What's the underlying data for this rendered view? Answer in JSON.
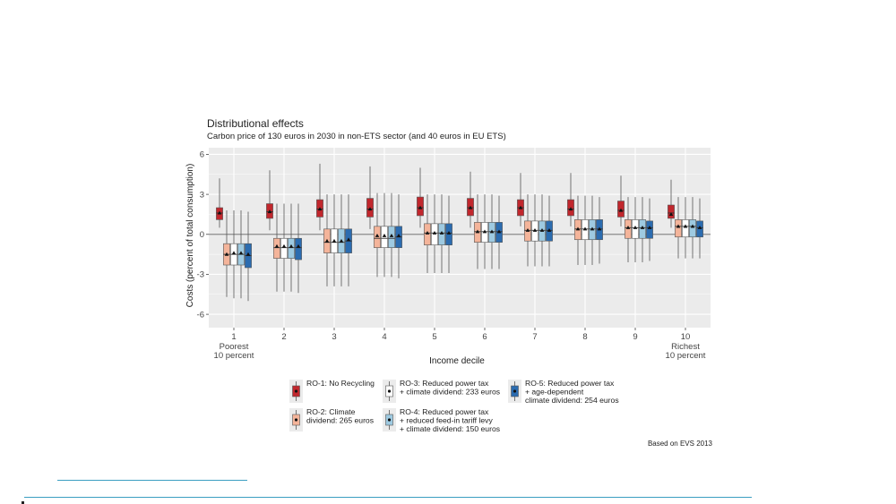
{
  "chart_data": {
    "type": "boxplot",
    "title": "Distributional effects",
    "subtitle": "Carbon price of 130 euros in 2030 in non-ETS sector (and 40 euros in EU ETS)",
    "xlabel": "Income decile",
    "ylabel": "Costs (percent of total consumption)",
    "ylim": [
      -7,
      6.5
    ],
    "yticks": [
      "6",
      "3",
      "0",
      "-3",
      "-6"
    ],
    "ytick_values": [
      6,
      3,
      0,
      -3,
      -6
    ],
    "categories": [
      "1",
      "2",
      "3",
      "4",
      "5",
      "6",
      "7",
      "8",
      "9",
      "10"
    ],
    "category_sublabels": {
      "first": [
        "Poorest",
        "10 percent"
      ],
      "last": [
        "Richest",
        "10 percent"
      ]
    },
    "note": "Based on EVS 2013",
    "series": [
      {
        "id": "RO-1",
        "color": "#c1272d",
        "legend": [
          "RO-1: No Recycling"
        ],
        "q1": [
          1.1,
          1.2,
          1.3,
          1.3,
          1.4,
          1.4,
          1.4,
          1.4,
          1.3,
          1.2
        ],
        "median": [
          1.6,
          1.7,
          1.9,
          1.9,
          2.0,
          2.0,
          2.0,
          1.9,
          1.8,
          1.6
        ],
        "q3": [
          2.0,
          2.3,
          2.6,
          2.7,
          2.8,
          2.7,
          2.6,
          2.6,
          2.5,
          2.2
        ],
        "mean": [
          1.6,
          1.7,
          1.9,
          1.9,
          2.0,
          2.0,
          2.0,
          1.9,
          1.8,
          1.5
        ],
        "whisker_low": [
          0.5,
          0.3,
          0.3,
          0.4,
          0.5,
          0.5,
          0.6,
          0.6,
          0.6,
          0.5
        ],
        "whisker_high": [
          4.2,
          4.8,
          5.3,
          5.1,
          5.0,
          4.7,
          4.6,
          4.6,
          4.4,
          4.1
        ]
      },
      {
        "id": "RO-2",
        "color": "#f4b49a",
        "legend": [
          "RO-2: Climate",
          "dividend: 265 euros"
        ],
        "q1": [
          -2.3,
          -1.8,
          -1.4,
          -1.0,
          -0.8,
          -0.6,
          -0.5,
          -0.4,
          -0.3,
          -0.2
        ],
        "median": [
          -1.5,
          -1.0,
          -0.6,
          -0.3,
          0.1,
          0.2,
          0.3,
          0.4,
          0.5,
          0.6
        ],
        "q3": [
          -0.7,
          -0.3,
          0.4,
          0.6,
          0.8,
          0.9,
          1.0,
          1.1,
          1.1,
          1.1
        ],
        "mean": [
          -1.5,
          -0.9,
          -0.5,
          -0.1,
          0.1,
          0.2,
          0.3,
          0.4,
          0.5,
          0.6
        ],
        "whisker_low": [
          -4.7,
          -4.3,
          -3.9,
          -3.2,
          -2.9,
          -2.6,
          -2.4,
          -2.3,
          -2.1,
          -1.8
        ],
        "whisker_high": [
          1.8,
          2.3,
          3.0,
          3.1,
          3.0,
          3.0,
          3.0,
          2.9,
          2.8,
          2.8
        ]
      },
      {
        "id": "RO-3",
        "color": "#ffffff",
        "legend": [
          "RO-3: Reduced power tax",
          "+ climate dividend: 233 euros"
        ],
        "q1": [
          -2.3,
          -1.8,
          -1.4,
          -1.0,
          -0.8,
          -0.6,
          -0.5,
          -0.4,
          -0.3,
          -0.2
        ],
        "median": [
          -1.5,
          -1.0,
          -0.6,
          -0.3,
          0.1,
          0.2,
          0.3,
          0.4,
          0.5,
          0.6
        ],
        "q3": [
          -0.7,
          -0.3,
          0.4,
          0.6,
          0.8,
          0.9,
          1.0,
          1.1,
          1.1,
          1.1
        ],
        "mean": [
          -1.4,
          -0.9,
          -0.5,
          -0.1,
          0.1,
          0.2,
          0.3,
          0.4,
          0.5,
          0.6
        ],
        "whisker_low": [
          -4.8,
          -4.3,
          -3.9,
          -3.2,
          -2.9,
          -2.6,
          -2.4,
          -2.3,
          -2.1,
          -1.8
        ],
        "whisker_high": [
          1.8,
          2.3,
          3.0,
          3.1,
          3.0,
          3.0,
          3.0,
          2.9,
          2.8,
          2.8
        ]
      },
      {
        "id": "RO-4",
        "color": "#9ecae1",
        "legend": [
          "RO-4: Reduced power tax",
          "+ reduced feed-in tariff levy",
          "+ climate dividend: 150 euros"
        ],
        "q1": [
          -2.3,
          -1.8,
          -1.4,
          -1.0,
          -0.8,
          -0.6,
          -0.5,
          -0.4,
          -0.3,
          -0.2
        ],
        "median": [
          -1.5,
          -1.0,
          -0.6,
          -0.3,
          0.1,
          0.2,
          0.3,
          0.4,
          0.5,
          0.6
        ],
        "q3": [
          -0.7,
          -0.3,
          0.4,
          0.6,
          0.8,
          0.9,
          1.0,
          1.1,
          1.1,
          1.1
        ],
        "mean": [
          -1.4,
          -0.9,
          -0.5,
          -0.1,
          0.1,
          0.2,
          0.3,
          0.4,
          0.5,
          0.6
        ],
        "whisker_low": [
          -4.8,
          -4.3,
          -3.9,
          -3.2,
          -2.9,
          -2.6,
          -2.4,
          -2.3,
          -2.1,
          -1.8
        ],
        "whisker_high": [
          1.8,
          2.3,
          3.0,
          3.1,
          3.0,
          3.0,
          3.0,
          2.9,
          2.8,
          2.8
        ]
      },
      {
        "id": "RO-5",
        "color": "#2b6cb0",
        "legend": [
          "RO-5: Reduced power tax",
          "+ age-dependent",
          "  climate dividend: 254 euros"
        ],
        "q1": [
          -2.5,
          -1.9,
          -1.4,
          -1.0,
          -0.8,
          -0.6,
          -0.5,
          -0.4,
          -0.3,
          -0.2
        ],
        "median": [
          -1.6,
          -1.0,
          -0.5,
          -0.2,
          0.1,
          0.2,
          0.3,
          0.4,
          0.5,
          0.5
        ],
        "q3": [
          -0.7,
          -0.3,
          0.4,
          0.6,
          0.8,
          0.9,
          1.0,
          1.1,
          1.0,
          1.0
        ],
        "mean": [
          -1.5,
          -0.9,
          -0.4,
          -0.1,
          0.1,
          0.2,
          0.3,
          0.4,
          0.5,
          0.5
        ],
        "whisker_low": [
          -5.0,
          -4.4,
          -3.9,
          -3.3,
          -2.9,
          -2.6,
          -2.4,
          -2.2,
          -2.0,
          -1.8
        ],
        "whisker_high": [
          1.7,
          2.3,
          3.0,
          3.0,
          2.9,
          2.9,
          2.9,
          2.8,
          2.7,
          2.7
        ]
      }
    ]
  }
}
